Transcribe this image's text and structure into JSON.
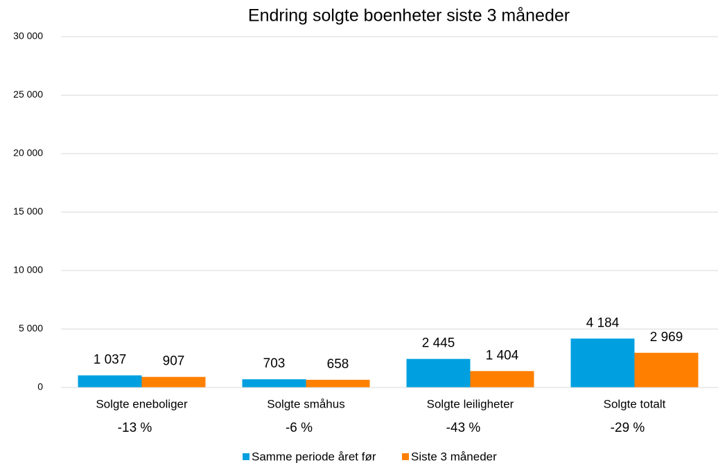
{
  "chart_data": {
    "type": "bar",
    "title": "Endring solgte boenheter siste 3 måneder",
    "categories": [
      "Solgte eneboliger",
      "Solgte småhus",
      "Solgte leiligheter",
      "Solgte totalt"
    ],
    "annotations": [
      "-13 %",
      "-6 %",
      "-43 %",
      "-29 %"
    ],
    "series": [
      {
        "name": "Samme periode året før",
        "color": "#00a0e0",
        "values": [
          1037,
          703,
          2445,
          4184
        ],
        "value_labels": [
          "1 037",
          "703",
          "2 445",
          "4 184"
        ]
      },
      {
        "name": "Siste 3 måneder",
        "color": "#ff8000",
        "values": [
          907,
          658,
          1404,
          2969
        ],
        "value_labels": [
          "907",
          "658",
          "1 404",
          "2 969"
        ]
      }
    ],
    "ylim": [
      0,
      30000
    ],
    "yticks": [
      0,
      {
        "value": 5000,
        "label": "5 000"
      },
      {
        "value": 10000,
        "label": "10 000"
      },
      {
        "value": 15000,
        "label": "15 000"
      },
      {
        "value": 20000,
        "label": "20 000"
      },
      {
        "value": 25000,
        "label": "25 000"
      },
      {
        "value": 30000,
        "label": "30 000"
      }
    ],
    "grid": true,
    "legend": "bottom"
  }
}
